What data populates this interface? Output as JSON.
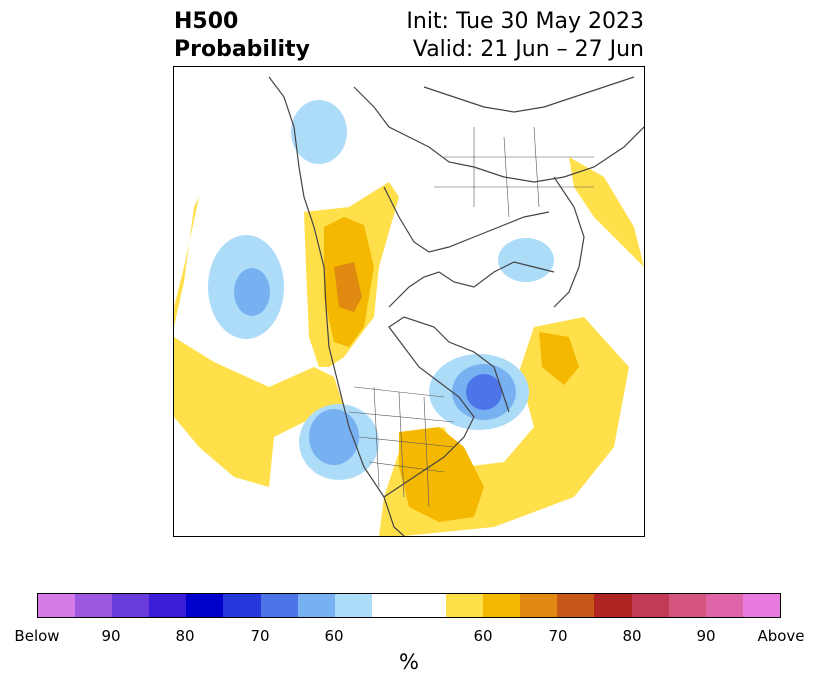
{
  "title": {
    "left_line1": "H500",
    "left_line2": "Probability",
    "right_line1": "Init: Tue 30 May 2023",
    "right_line2": "Valid: 21 Jun – 27 Jun"
  },
  "colors": {
    "below": [
      "#d67ae8",
      "#9c59e0",
      "#6a3bdb",
      "#3a1dd6",
      "#0000cc",
      "#2538dc",
      "#4d75e8",
      "#78b1f2",
      "#addcf9"
    ],
    "neutral": "#ffffff",
    "above": [
      "#ffe04a",
      "#f4b800",
      "#e08a12",
      "#c8571a",
      "#b02424",
      "#c23a55",
      "#d4557e",
      "#df65a8",
      "#e97ae0"
    ]
  },
  "colorbar": {
    "labels": [
      "Below",
      "90",
      "80",
      "70",
      "60",
      "60",
      "70",
      "80",
      "90",
      "Above"
    ],
    "unit": "%"
  }
}
